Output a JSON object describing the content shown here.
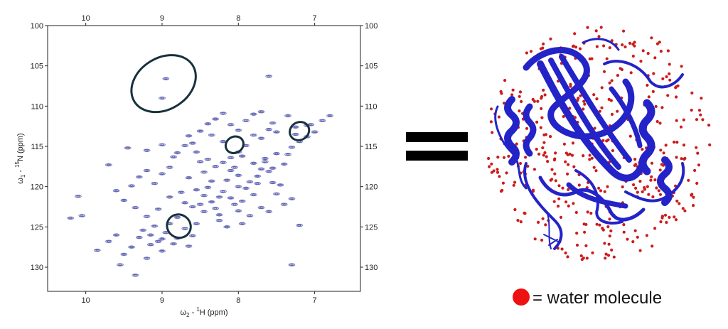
{
  "chart_data": {
    "type": "scatter",
    "title": "",
    "xlabel_symbol": "ω",
    "xlabel_sub": "2",
    "xlabel_rest": " - ",
    "xlabel_sup": "1",
    "xlabel_tail": "H (ppm)",
    "ylabel_symbol": "ω",
    "ylabel_sub": "1",
    "ylabel_rest": " - ",
    "ylabel_sup": "15",
    "ylabel_tail": "N (ppm)",
    "xlim": [
      10.5,
      6.4
    ],
    "ylim": [
      100,
      133
    ],
    "x_reversed": true,
    "y_reversed": true,
    "x_ticks": [
      10,
      9,
      8,
      7
    ],
    "y_ticks": [
      100,
      105,
      110,
      115,
      120,
      125,
      130
    ],
    "grid": false,
    "peak_color": "#5b5fb0",
    "highlight_color": "#17313d",
    "peaks": [
      [
        10.1,
        121.2
      ],
      [
        10.2,
        123.9
      ],
      [
        10.05,
        123.6
      ],
      [
        9.85,
        127.9
      ],
      [
        9.7,
        126.8
      ],
      [
        9.6,
        126.0
      ],
      [
        9.55,
        129.7
      ],
      [
        9.5,
        128.4
      ],
      [
        9.4,
        127.5
      ],
      [
        9.35,
        131.0
      ],
      [
        9.3,
        126.3
      ],
      [
        9.25,
        125.4
      ],
      [
        9.2,
        128.9
      ],
      [
        9.15,
        127.2
      ],
      [
        9.1,
        124.9
      ],
      [
        9.05,
        126.8
      ],
      [
        9.0,
        128.0
      ],
      [
        8.95,
        125.7
      ],
      [
        8.85,
        127.1
      ],
      [
        8.8,
        123.8
      ],
      [
        8.7,
        125.2
      ],
      [
        8.65,
        127.4
      ],
      [
        8.6,
        122.5
      ],
      [
        8.55,
        124.6
      ],
      [
        8.5,
        122.2
      ],
      [
        8.45,
        121.1
      ],
      [
        8.4,
        120.1
      ],
      [
        8.35,
        121.9
      ],
      [
        8.3,
        122.7
      ],
      [
        8.25,
        123.5
      ],
      [
        8.2,
        120.6
      ],
      [
        8.15,
        119.2
      ],
      [
        8.1,
        121.4
      ],
      [
        8.05,
        122.2
      ],
      [
        8.0,
        123.0
      ],
      [
        7.95,
        121.8
      ],
      [
        7.9,
        120.2
      ],
      [
        7.85,
        119.4
      ],
      [
        7.8,
        121.0
      ],
      [
        7.75,
        118.7
      ],
      [
        7.7,
        117.8
      ],
      [
        7.65,
        116.5
      ],
      [
        7.6,
        118.1
      ],
      [
        7.55,
        119.5
      ],
      [
        7.5,
        120.9
      ],
      [
        7.45,
        119.8
      ],
      [
        7.4,
        117.2
      ],
      [
        7.35,
        116.0
      ],
      [
        7.3,
        115.1
      ],
      [
        7.2,
        114.4
      ],
      [
        7.1,
        113.8
      ],
      [
        7.0,
        113.2
      ],
      [
        6.9,
        111.8
      ],
      [
        6.8,
        111.2
      ],
      [
        7.05,
        112.3
      ],
      [
        7.25,
        112.6
      ],
      [
        7.5,
        113.2
      ],
      [
        7.6,
        112.9
      ],
      [
        7.7,
        114.0
      ],
      [
        7.8,
        113.6
      ],
      [
        7.9,
        114.9
      ],
      [
        8.0,
        115.7
      ],
      [
        8.1,
        116.4
      ],
      [
        8.2,
        117.0
      ],
      [
        8.3,
        117.5
      ],
      [
        8.4,
        116.6
      ],
      [
        8.5,
        116.9
      ],
      [
        8.55,
        115.7
      ],
      [
        8.6,
        114.6
      ],
      [
        8.7,
        114.9
      ],
      [
        8.8,
        115.8
      ],
      [
        8.9,
        117.6
      ],
      [
        9.0,
        118.4
      ],
      [
        9.1,
        119.6
      ],
      [
        9.2,
        118.0
      ],
      [
        9.3,
        118.8
      ],
      [
        9.4,
        119.9
      ],
      [
        9.5,
        121.7
      ],
      [
        9.6,
        120.5
      ],
      [
        9.7,
        117.3
      ],
      [
        9.45,
        115.2
      ],
      [
        9.2,
        115.5
      ],
      [
        9.0,
        114.8
      ],
      [
        8.85,
        116.3
      ],
      [
        8.65,
        113.7
      ],
      [
        8.5,
        113.1
      ],
      [
        8.4,
        112.2
      ],
      [
        8.3,
        111.6
      ],
      [
        8.2,
        110.9
      ],
      [
        8.1,
        112.3
      ],
      [
        8.0,
        113.0
      ],
      [
        7.9,
        111.8
      ],
      [
        7.8,
        111.0
      ],
      [
        7.7,
        110.7
      ],
      [
        7.55,
        112.1
      ],
      [
        7.35,
        111.2
      ],
      [
        7.25,
        113.5
      ],
      [
        7.1,
        112.4
      ],
      [
        7.6,
        106.3
      ],
      [
        8.2,
        114.4
      ],
      [
        7.5,
        115.9
      ],
      [
        7.8,
        117.1
      ],
      [
        8.0,
        118.6
      ],
      [
        8.35,
        119.3
      ],
      [
        8.45,
        118.2
      ],
      [
        8.65,
        118.9
      ],
      [
        8.75,
        120.7
      ],
      [
        8.9,
        121.3
      ],
      [
        9.05,
        122.8
      ],
      [
        9.2,
        123.7
      ],
      [
        9.35,
        122.6
      ],
      [
        8.7,
        122.0
      ],
      [
        8.55,
        120.4
      ],
      [
        8.25,
        124.2
      ],
      [
        8.15,
        125.0
      ],
      [
        7.95,
        124.6
      ],
      [
        7.85,
        123.6
      ],
      [
        7.7,
        122.6
      ],
      [
        7.6,
        123.1
      ],
      [
        7.4,
        122.2
      ],
      [
        7.3,
        121.5
      ],
      [
        8.95,
        106.6
      ],
      [
        9.0,
        109.0
      ],
      [
        7.65,
        116.9
      ],
      [
        7.2,
        124.8
      ],
      [
        7.3,
        129.7
      ],
      [
        8.0,
        120.0
      ],
      [
        8.1,
        118.0
      ],
      [
        8.25,
        121.3
      ],
      [
        8.45,
        123.1
      ],
      [
        8.6,
        126.1
      ],
      [
        8.8,
        126.4
      ],
      [
        9.0,
        126.5
      ],
      [
        9.15,
        126.0
      ],
      [
        8.9,
        124.6
      ],
      [
        7.75,
        119.6
      ],
      [
        7.55,
        117.7
      ],
      [
        8.35,
        113.6
      ],
      [
        7.95,
        116.2
      ],
      [
        8.05,
        117.6
      ]
    ],
    "highlights": [
      {
        "cx": 8.98,
        "cy": 107.2,
        "rx": 0.45,
        "ry": 3.2,
        "rot": -32
      },
      {
        "cx": 8.05,
        "cy": 114.8,
        "rx": 0.12,
        "ry": 1.0,
        "rot": -30
      },
      {
        "cx": 7.2,
        "cy": 113.1,
        "rx": 0.13,
        "ry": 1.1,
        "rot": -30
      },
      {
        "cx": 8.78,
        "cy": 124.9,
        "rx": 0.15,
        "ry": 1.5,
        "rot": 36
      }
    ]
  },
  "protein": {
    "ribbon_color": "#2323c8",
    "water_color": "#cc1b1b",
    "legend_dot_color": "#ee1111",
    "legend_text": "= water molecule"
  },
  "equals_color": "#000000"
}
